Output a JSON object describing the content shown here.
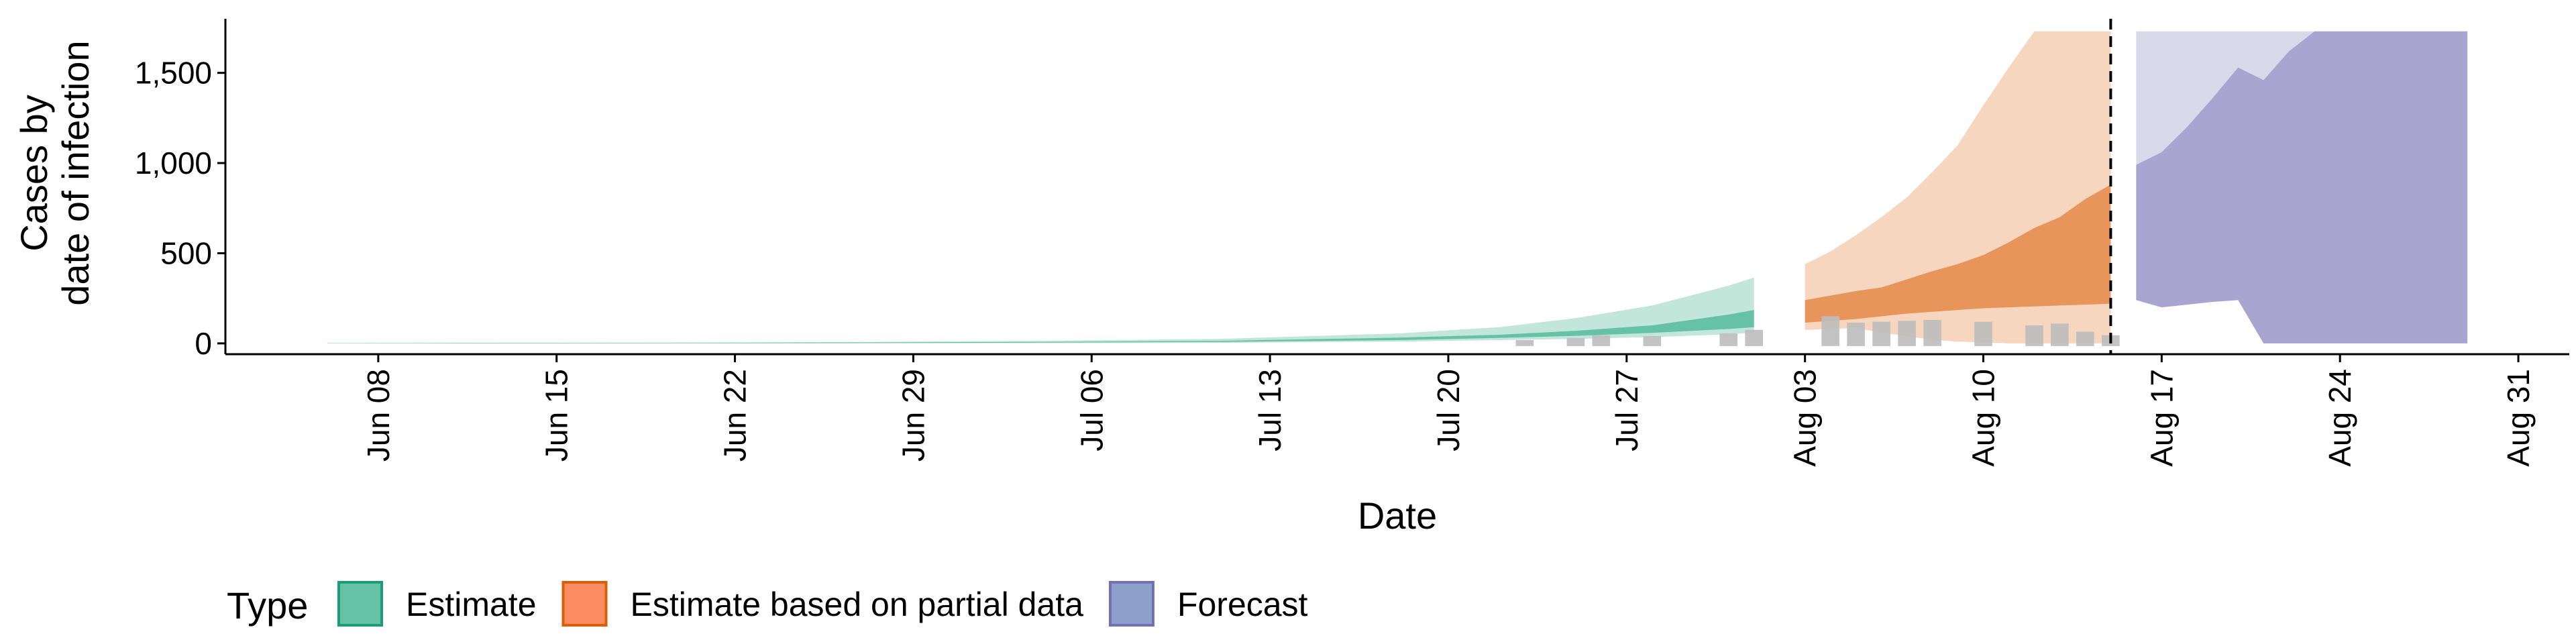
{
  "chart_data": {
    "type": "area",
    "ylabel_lines": [
      "Cases by",
      "date of infection"
    ],
    "xlabel": "Date",
    "yticks": [
      {
        "value": 0,
        "label": "0"
      },
      {
        "value": 500,
        "label": "500"
      },
      {
        "value": 1000,
        "label": "1,000"
      },
      {
        "value": 1500,
        "label": "1,500"
      }
    ],
    "xticks": [
      {
        "value": "2020-06-08",
        "label": "Jun 08"
      },
      {
        "value": "2020-06-15",
        "label": "Jun 15"
      },
      {
        "value": "2020-06-22",
        "label": "Jun 22"
      },
      {
        "value": "2020-06-29",
        "label": "Jun 29"
      },
      {
        "value": "2020-07-06",
        "label": "Jul 06"
      },
      {
        "value": "2020-07-13",
        "label": "Jul 13"
      },
      {
        "value": "2020-07-20",
        "label": "Jul 20"
      },
      {
        "value": "2020-07-27",
        "label": "Jul 27"
      },
      {
        "value": "2020-08-03",
        "label": "Aug 03"
      },
      {
        "value": "2020-08-10",
        "label": "Aug 10"
      },
      {
        "value": "2020-08-17",
        "label": "Aug 17"
      },
      {
        "value": "2020-08-24",
        "label": "Aug 24"
      },
      {
        "value": "2020-08-31",
        "label": "Aug 31"
      }
    ],
    "xlim": [
      "2020-06-02",
      "2020-09-02"
    ],
    "ylim": [
      -60,
      1800
    ],
    "ycap": 1730,
    "vline_date": "2020-08-15",
    "grid": false,
    "legend": {
      "title": "Type",
      "position": "bottom",
      "items": [
        {
          "label": "Estimate",
          "fill": "#66c2a5",
          "stroke": "#1b9e77"
        },
        {
          "label": "Estimate based on partial data",
          "fill": "#fc8d62",
          "stroke": "#d95f02"
        },
        {
          "label": "Forecast",
          "fill": "#8da0cb",
          "stroke": "#7570b3"
        }
      ]
    },
    "colors": {
      "estimate_outer": "#c3e6da",
      "estimate_inner": "#66c2a5",
      "partial_outer": "#f6d6bf",
      "partial_inner": "#e8955c",
      "forecast_outer": "#d9d9ea",
      "forecast_inner": "#a8a6d0",
      "reported_bar": "#bdbdbd"
    },
    "series": [
      {
        "name": "Estimate",
        "x": [
          "2020-06-06",
          "2020-06-13",
          "2020-06-20",
          "2020-06-27",
          "2020-07-04",
          "2020-07-11",
          "2020-07-18",
          "2020-07-22",
          "2020-07-25",
          "2020-07-28",
          "2020-07-31",
          "2020-08-01"
        ],
        "outer_lower": [
          0,
          0,
          0,
          0,
          1,
          3,
          10,
          18,
          25,
          35,
          50,
          60
        ],
        "outer_upper": [
          2,
          3,
          5,
          8,
          14,
          25,
          55,
          90,
          140,
          210,
          320,
          365
        ],
        "inner_lower": [
          0,
          0,
          1,
          2,
          4,
          8,
          18,
          30,
          42,
          58,
          80,
          90
        ],
        "inner_upper": [
          1,
          2,
          3,
          5,
          8,
          14,
          32,
          48,
          70,
          100,
          160,
          185
        ]
      },
      {
        "name": "Estimate based on partial data",
        "x": [
          "2020-08-03",
          "2020-08-04",
          "2020-08-05",
          "2020-08-06",
          "2020-08-07",
          "2020-08-08",
          "2020-08-09",
          "2020-08-10",
          "2020-08-11",
          "2020-08-12",
          "2020-08-13",
          "2020-08-14",
          "2020-08-15"
        ],
        "outer_lower": [
          75,
          80,
          85,
          60,
          40,
          20,
          10,
          5,
          0,
          0,
          0,
          0,
          0
        ],
        "outer_upper": [
          440,
          510,
          600,
          700,
          810,
          950,
          1100,
          1320,
          1530,
          1730,
          1730,
          1730,
          1730
        ],
        "inner_lower": [
          115,
          125,
          135,
          150,
          165,
          175,
          185,
          195,
          200,
          205,
          210,
          215,
          220
        ],
        "inner_upper": [
          240,
          265,
          290,
          310,
          355,
          400,
          440,
          490,
          560,
          640,
          700,
          800,
          880
        ]
      },
      {
        "name": "Forecast",
        "x": [
          "2020-08-16",
          "2020-08-17",
          "2020-08-18",
          "2020-08-19",
          "2020-08-20",
          "2020-08-21",
          "2020-08-22",
          "2020-08-23",
          "2020-08-24",
          "2020-08-25",
          "2020-08-26",
          "2020-08-27",
          "2020-08-28",
          "2020-08-29"
        ],
        "outer_lower": [
          240,
          200,
          215,
          230,
          240,
          0,
          0,
          0,
          0,
          0,
          0,
          0,
          0,
          0
        ],
        "outer_upper": [
          1730,
          1730,
          1730,
          1730,
          1730,
          1730,
          1730,
          1730,
          1730,
          1730,
          1730,
          1730,
          1730,
          1730
        ],
        "inner_lower": [
          240,
          200,
          215,
          230,
          240,
          0,
          0,
          0,
          0,
          0,
          0,
          0,
          0,
          0
        ],
        "inner_upper": [
          990,
          1060,
          1200,
          1360,
          1530,
          1460,
          1620,
          1730,
          1730,
          1730,
          1730,
          1730,
          1730,
          1730
        ]
      }
    ],
    "reported": {
      "x": [
        "2020-07-23",
        "2020-07-25",
        "2020-07-26",
        "2020-07-28",
        "2020-07-31",
        "2020-08-01",
        "2020-08-04",
        "2020-08-05",
        "2020-08-06",
        "2020-08-07",
        "2020-08-08",
        "2020-08-10",
        "2020-08-12",
        "2020-08-13",
        "2020-08-14",
        "2020-08-15"
      ],
      "values": [
        18,
        30,
        45,
        40,
        55,
        75,
        150,
        115,
        120,
        125,
        130,
        120,
        100,
        110,
        65,
        45
      ]
    }
  }
}
